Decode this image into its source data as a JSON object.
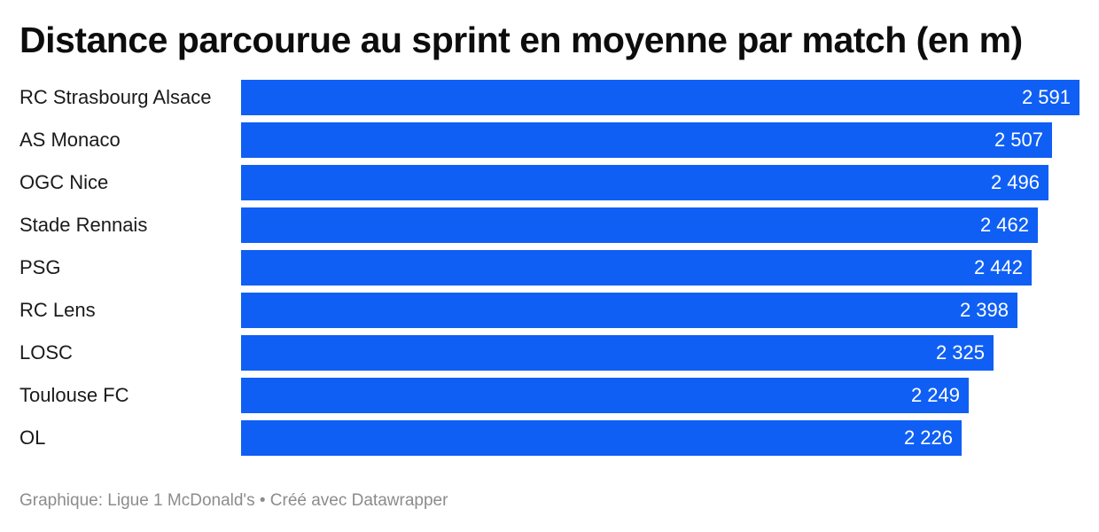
{
  "chart_data": {
    "type": "bar",
    "orientation": "horizontal",
    "title": "Distance parcourue au sprint en moyenne par match (en m)",
    "categories": [
      "RC Strasbourg Alsace",
      "AS Monaco",
      "OGC Nice",
      "Stade Rennais",
      "PSG",
      "RC Lens",
      "LOSC",
      "Toulouse FC",
      "OL"
    ],
    "values": [
      2591,
      2507,
      2496,
      2462,
      2442,
      2398,
      2325,
      2249,
      2226
    ],
    "value_labels": [
      "2 591",
      "2 507",
      "2 496",
      "2 462",
      "2 442",
      "2 398",
      "2 325",
      "2 249",
      "2 226"
    ],
    "xlim": [
      0,
      2591
    ],
    "grid": false,
    "legend": "none",
    "bar_color": "#0f5ff5"
  },
  "footer": {
    "source": "Graphique: Ligue 1 McDonald's • Créé avec Datawrapper"
  }
}
